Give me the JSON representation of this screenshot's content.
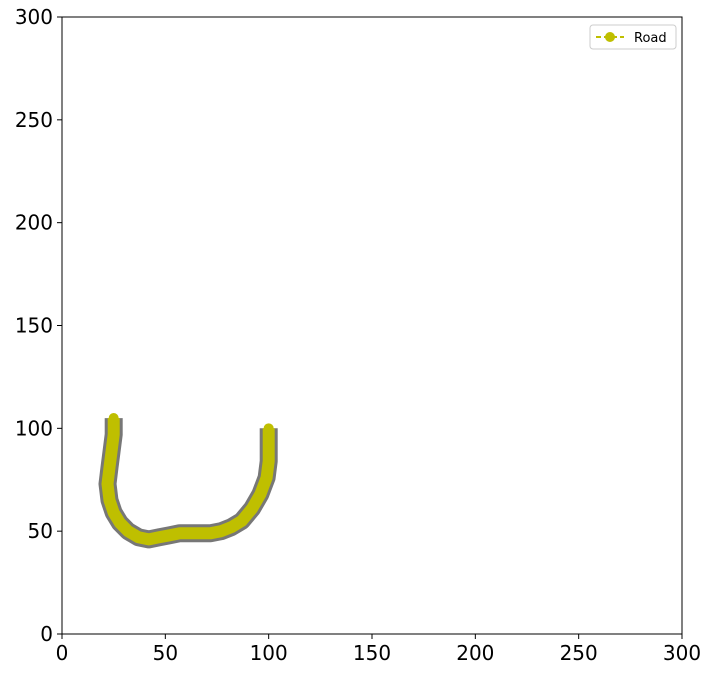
{
  "chart_data": {
    "type": "line",
    "title": "",
    "xlabel": "",
    "ylabel": "",
    "xlim": [
      0,
      300
    ],
    "ylim": [
      0,
      300
    ],
    "xticks": [
      0,
      50,
      100,
      150,
      200,
      250,
      300
    ],
    "yticks": [
      0,
      50,
      100,
      150,
      200,
      250,
      300
    ],
    "grid": false,
    "legend": {
      "placement": "top-right",
      "entries": [
        {
          "label": "Road",
          "color": "#bfbf00",
          "style": "dashed-with-circle-marker"
        }
      ]
    },
    "series": [
      {
        "name": "Road",
        "color": "#bfbf00",
        "edge_color": "#777777",
        "endpoints": [
          [
            25,
            105
          ],
          [
            100,
            100
          ]
        ],
        "x": [
          25,
          25,
          24,
          23,
          22,
          23,
          25,
          28,
          32,
          37,
          42,
          47,
          52,
          57,
          62,
          67,
          72,
          77,
          82,
          87,
          92,
          96,
          99,
          100,
          100,
          100
        ],
        "y": [
          105,
          97,
          89,
          81,
          73,
          65,
          59,
          54,
          50,
          47,
          46,
          47,
          48,
          49,
          49,
          49,
          49,
          50,
          52,
          55,
          61,
          68,
          76,
          84,
          92,
          100
        ]
      }
    ]
  }
}
